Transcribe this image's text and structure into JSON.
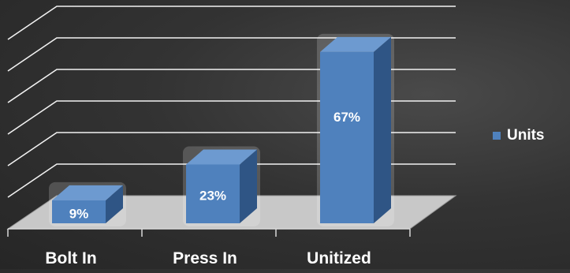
{
  "chart_data": {
    "type": "bar",
    "categories": [
      "Bolt In",
      "Press In",
      "Unitized"
    ],
    "series": [
      {
        "name": "Units",
        "values": [
          9,
          23,
          67
        ]
      }
    ],
    "value_labels": [
      "9%",
      "23%",
      "67%"
    ],
    "ylim": [
      0,
      75
    ],
    "grid": true,
    "legend_position": "right",
    "style": "3d-column",
    "colors": {
      "bar_front": "#4f81bd",
      "bar_side": "#2f5585",
      "bar_top": "#6d9ad0",
      "floor": "#c8c8c8",
      "grid": "#f2f2f2",
      "text": "#ffffff"
    }
  }
}
